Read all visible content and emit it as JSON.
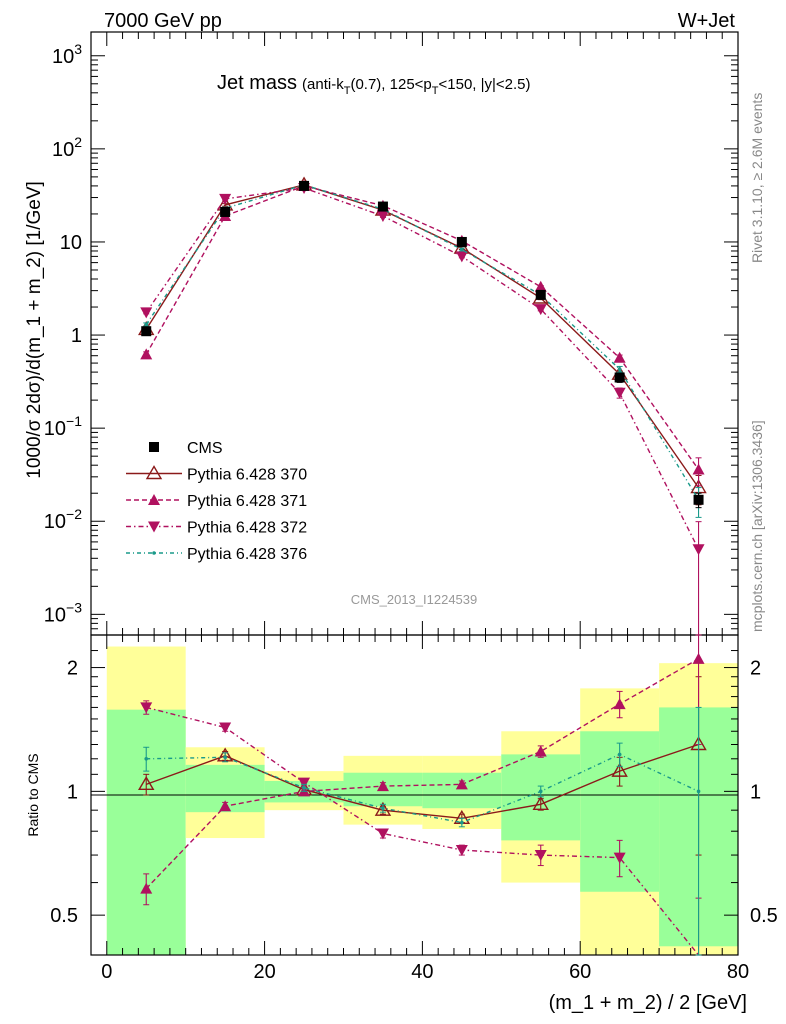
{
  "header": {
    "left": "7000 GeV pp",
    "right": "W+Jet"
  },
  "side_labels": {
    "top": "Rivet 3.1.10, ≥ 2.6M events",
    "bottom": "mcplots.cern.ch [arXiv:1306.3436]"
  },
  "watermark": "CMS_2013_I1224539",
  "colors": {
    "data": "#000000",
    "p370": "#8b1a1a",
    "p371": "#b0115f",
    "p372": "#b0115f",
    "p376": "#1a9a8a",
    "band_inner": "#99ff99",
    "band_outer": "#ffff99"
  },
  "chart_data": [
    {
      "type": "line",
      "panel": "main",
      "title": {
        "main": "Jet mass",
        "sub": "(anti-k",
        "sub_T1": "T",
        "sub_mid": "(0.7), 125<p",
        "sub_T2": "T",
        "sub_end": "<150, |y|<2.5)"
      },
      "ylabel": "1000/σ 2dσ)/d(m_1 + m_2) [1/GeV]",
      "yscale": "log",
      "xlim": [
        -2,
        80
      ],
      "ylim": [
        0.0006,
        1800
      ],
      "yticks": [
        {
          "v": 1000,
          "base": "10",
          "exp": "3"
        },
        {
          "v": 100,
          "base": "10",
          "exp": "2"
        },
        {
          "v": 10,
          "base": "10",
          "exp": ""
        },
        {
          "v": 1,
          "base": "1",
          "exp": ""
        },
        {
          "v": 0.1,
          "base": "10",
          "exp": "−1"
        },
        {
          "v": 0.01,
          "base": "10",
          "exp": "−2"
        },
        {
          "v": 0.001,
          "base": "10",
          "exp": "−3"
        }
      ],
      "legend": {
        "position": "bottom-left"
      },
      "x": [
        5,
        15,
        25,
        35,
        45,
        55,
        65,
        75
      ],
      "series": [
        {
          "name": "CMS",
          "style": "data",
          "values": [
            1.1,
            21,
            40,
            24,
            10,
            2.7,
            0.35,
            0.017
          ],
          "err": [
            0.1,
            2,
            2,
            1.5,
            0.6,
            0.2,
            0.04,
            0.003
          ]
        },
        {
          "name": "Pythia 6.428 370",
          "style": "p370",
          "values": [
            1.15,
            25,
            41,
            22,
            8.6,
            2.5,
            0.38,
            0.023
          ],
          "err": [
            0.05,
            0.8,
            1,
            0.7,
            0.3,
            0.1,
            0.03,
            0.008
          ]
        },
        {
          "name": "Pythia 6.428 371",
          "style": "p371",
          "values": [
            0.62,
            19,
            40,
            24.5,
            10.3,
            3.3,
            0.57,
            0.036
          ],
          "err": [
            0.04,
            0.6,
            1,
            0.7,
            0.3,
            0.1,
            0.04,
            0.012
          ]
        },
        {
          "name": "Pythia 6.428 372",
          "style": "p372",
          "values": [
            1.75,
            29,
            38,
            19,
            7,
            1.9,
            0.24,
            0.005
          ],
          "err": [
            0.06,
            0.9,
            1,
            0.6,
            0.25,
            0.08,
            0.03,
            0.0049
          ]
        },
        {
          "name": "Pythia 6.428 376",
          "style": "p376",
          "values": [
            1.3,
            23,
            41,
            22.5,
            8.3,
            2.7,
            0.43,
            0.017
          ],
          "err": [
            0.05,
            0.7,
            1,
            0.7,
            0.3,
            0.1,
            0.03,
            0.006
          ]
        }
      ]
    },
    {
      "type": "line",
      "panel": "ratio",
      "ylabel": "Ratio to CMS",
      "xlabel": "(m_1 + m_2) / 2 [GeV]",
      "yscale": "log",
      "xlim": [
        -2,
        80
      ],
      "ylim": [
        0.4,
        2.4
      ],
      "yticks": [
        0.5,
        1,
        2
      ],
      "xticks": [
        0,
        20,
        40,
        60,
        80
      ],
      "bands": [
        {
          "x0": 0,
          "x1": 10,
          "inner": [
            0.4,
            1.58
          ],
          "outer": [
            0.4,
            2.25
          ]
        },
        {
          "x0": 10,
          "x1": 20,
          "inner": [
            0.89,
            1.16
          ],
          "outer": [
            0.77,
            1.28
          ]
        },
        {
          "x0": 20,
          "x1": 30,
          "inner": [
            0.94,
            1.06
          ],
          "outer": [
            0.9,
            1.12
          ]
        },
        {
          "x0": 30,
          "x1": 40,
          "inner": [
            0.92,
            1.11
          ],
          "outer": [
            0.83,
            1.22
          ]
        },
        {
          "x0": 40,
          "x1": 50,
          "inner": [
            0.91,
            1.11
          ],
          "outer": [
            0.81,
            1.22
          ]
        },
        {
          "x0": 50,
          "x1": 60,
          "inner": [
            0.76,
            1.23
          ],
          "outer": [
            0.6,
            1.4
          ]
        },
        {
          "x0": 60,
          "x1": 70,
          "inner": [
            0.57,
            1.4
          ],
          "outer": [
            0.4,
            1.78
          ]
        },
        {
          "x0": 70,
          "x1": 80,
          "inner": [
            0.42,
            1.6
          ],
          "outer": [
            0.4,
            2.05
          ]
        }
      ],
      "series": [
        {
          "name": "Pythia 6.428 370",
          "style": "p370",
          "values": [
            1.04,
            1.22,
            1.01,
            0.9,
            0.86,
            0.93,
            1.12,
            1.3
          ],
          "err": [
            0.06,
            0.03,
            0.02,
            0.02,
            0.02,
            0.03,
            0.09,
            0.6
          ]
        },
        {
          "name": "Pythia 6.428 371",
          "style": "p371",
          "values": [
            0.58,
            0.92,
            1.0,
            1.03,
            1.04,
            1.25,
            1.63,
            2.1
          ],
          "err": [
            0.05,
            0.02,
            0.02,
            0.02,
            0.02,
            0.04,
            0.12,
            0.8
          ]
        },
        {
          "name": "Pythia 6.428 372",
          "style": "p372",
          "values": [
            1.6,
            1.43,
            1.05,
            0.79,
            0.72,
            0.7,
            0.69,
            0.3
          ],
          "err": [
            0.06,
            0.03,
            0.02,
            0.02,
            0.02,
            0.04,
            0.07,
            0.25
          ]
        },
        {
          "name": "Pythia 6.428 376",
          "style": "p376",
          "values": [
            1.2,
            1.21,
            1.02,
            0.91,
            0.84,
            1.0,
            1.23,
            1.0
          ],
          "err": [
            0.08,
            0.03,
            0.02,
            0.02,
            0.02,
            0.03,
            0.08,
            0.6
          ]
        }
      ]
    }
  ]
}
